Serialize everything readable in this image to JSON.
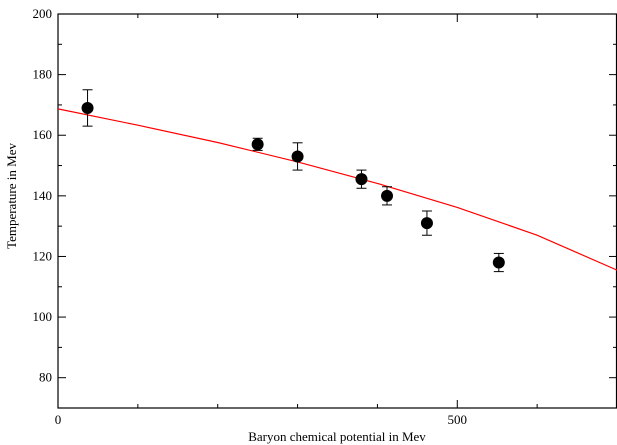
{
  "chart_data": {
    "type": "scatter",
    "title": "",
    "xlabel": "Baryon chemical potential in Mev",
    "ylabel": "Temperature in Mev",
    "xlim": [
      0,
      700
    ],
    "ylim": [
      70,
      200
    ],
    "xticks": [
      0,
      500
    ],
    "xticks_minor": [
      100,
      200,
      300,
      400,
      600
    ],
    "yticks": [
      80,
      100,
      120,
      140,
      160,
      180,
      200
    ],
    "yticks_minor": [
      90,
      110,
      130,
      150,
      170,
      190
    ],
    "grid": false,
    "series": [
      {
        "kind": "points-with-errorbars",
        "color": "#000000",
        "points": [
          {
            "x": 37,
            "y": 169,
            "err": 6
          },
          {
            "x": 250,
            "y": 157,
            "err": 2
          },
          {
            "x": 300,
            "y": 153,
            "err": 4.5
          },
          {
            "x": 380,
            "y": 145.5,
            "err": 3
          },
          {
            "x": 412,
            "y": 140,
            "err": 3
          },
          {
            "x": 462,
            "y": 131,
            "err": 4
          },
          {
            "x": 552,
            "y": 118,
            "err": 3
          }
        ]
      },
      {
        "kind": "fit-line",
        "color": "#ff0000",
        "x": [
          0,
          100,
          200,
          300,
          400,
          500,
          600,
          700
        ],
        "y": [
          168.7,
          163.3,
          157.6,
          151.2,
          144.1,
          136.2,
          127.0,
          115.5
        ]
      }
    ]
  }
}
